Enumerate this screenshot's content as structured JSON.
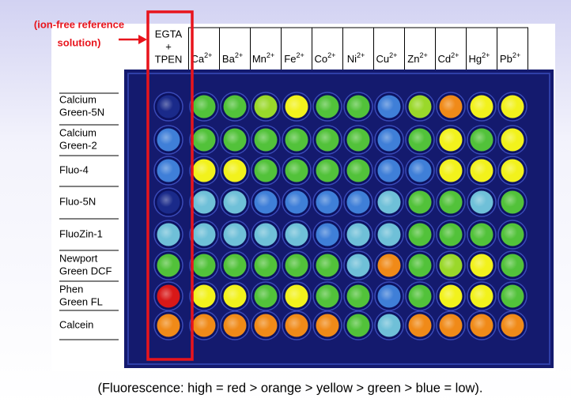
{
  "annotation": {
    "lines": [
      "(ion-free reference",
      "solution)"
    ]
  },
  "control_column": {
    "lines": [
      "EGTA",
      "+",
      "TPEN"
    ]
  },
  "ion_columns": [
    {
      "symbol": "Ca",
      "charge": "2+"
    },
    {
      "symbol": "Ba",
      "charge": "2+"
    },
    {
      "symbol": "Mn",
      "charge": "2+"
    },
    {
      "symbol": "Fe",
      "charge": "2+"
    },
    {
      "symbol": "Co",
      "charge": "2+"
    },
    {
      "symbol": "Ni",
      "charge": "2+"
    },
    {
      "symbol": "Cu",
      "charge": "2+"
    },
    {
      "symbol": "Zn",
      "charge": "2+"
    },
    {
      "symbol": "Cd",
      "charge": "2+"
    },
    {
      "symbol": "Hg",
      "charge": "2+"
    },
    {
      "symbol": "Pb",
      "charge": "2+"
    }
  ],
  "indicators": [
    {
      "lines": [
        "Calcium",
        "Green-5N"
      ]
    },
    {
      "lines": [
        "Calcium",
        "Green-2"
      ]
    },
    {
      "lines": [
        "Fluo-4"
      ]
    },
    {
      "lines": [
        "Fluo-5N"
      ]
    },
    {
      "lines": [
        "FluoZin-1"
      ]
    },
    {
      "lines": [
        "Newport",
        "Green DCF"
      ]
    },
    {
      "lines": [
        "Phen",
        "Green FL"
      ]
    },
    {
      "lines": [
        "Calcein"
      ]
    }
  ],
  "caption": "(Fluorescence: high = red > orange > yellow > green > blue = low)."
}
